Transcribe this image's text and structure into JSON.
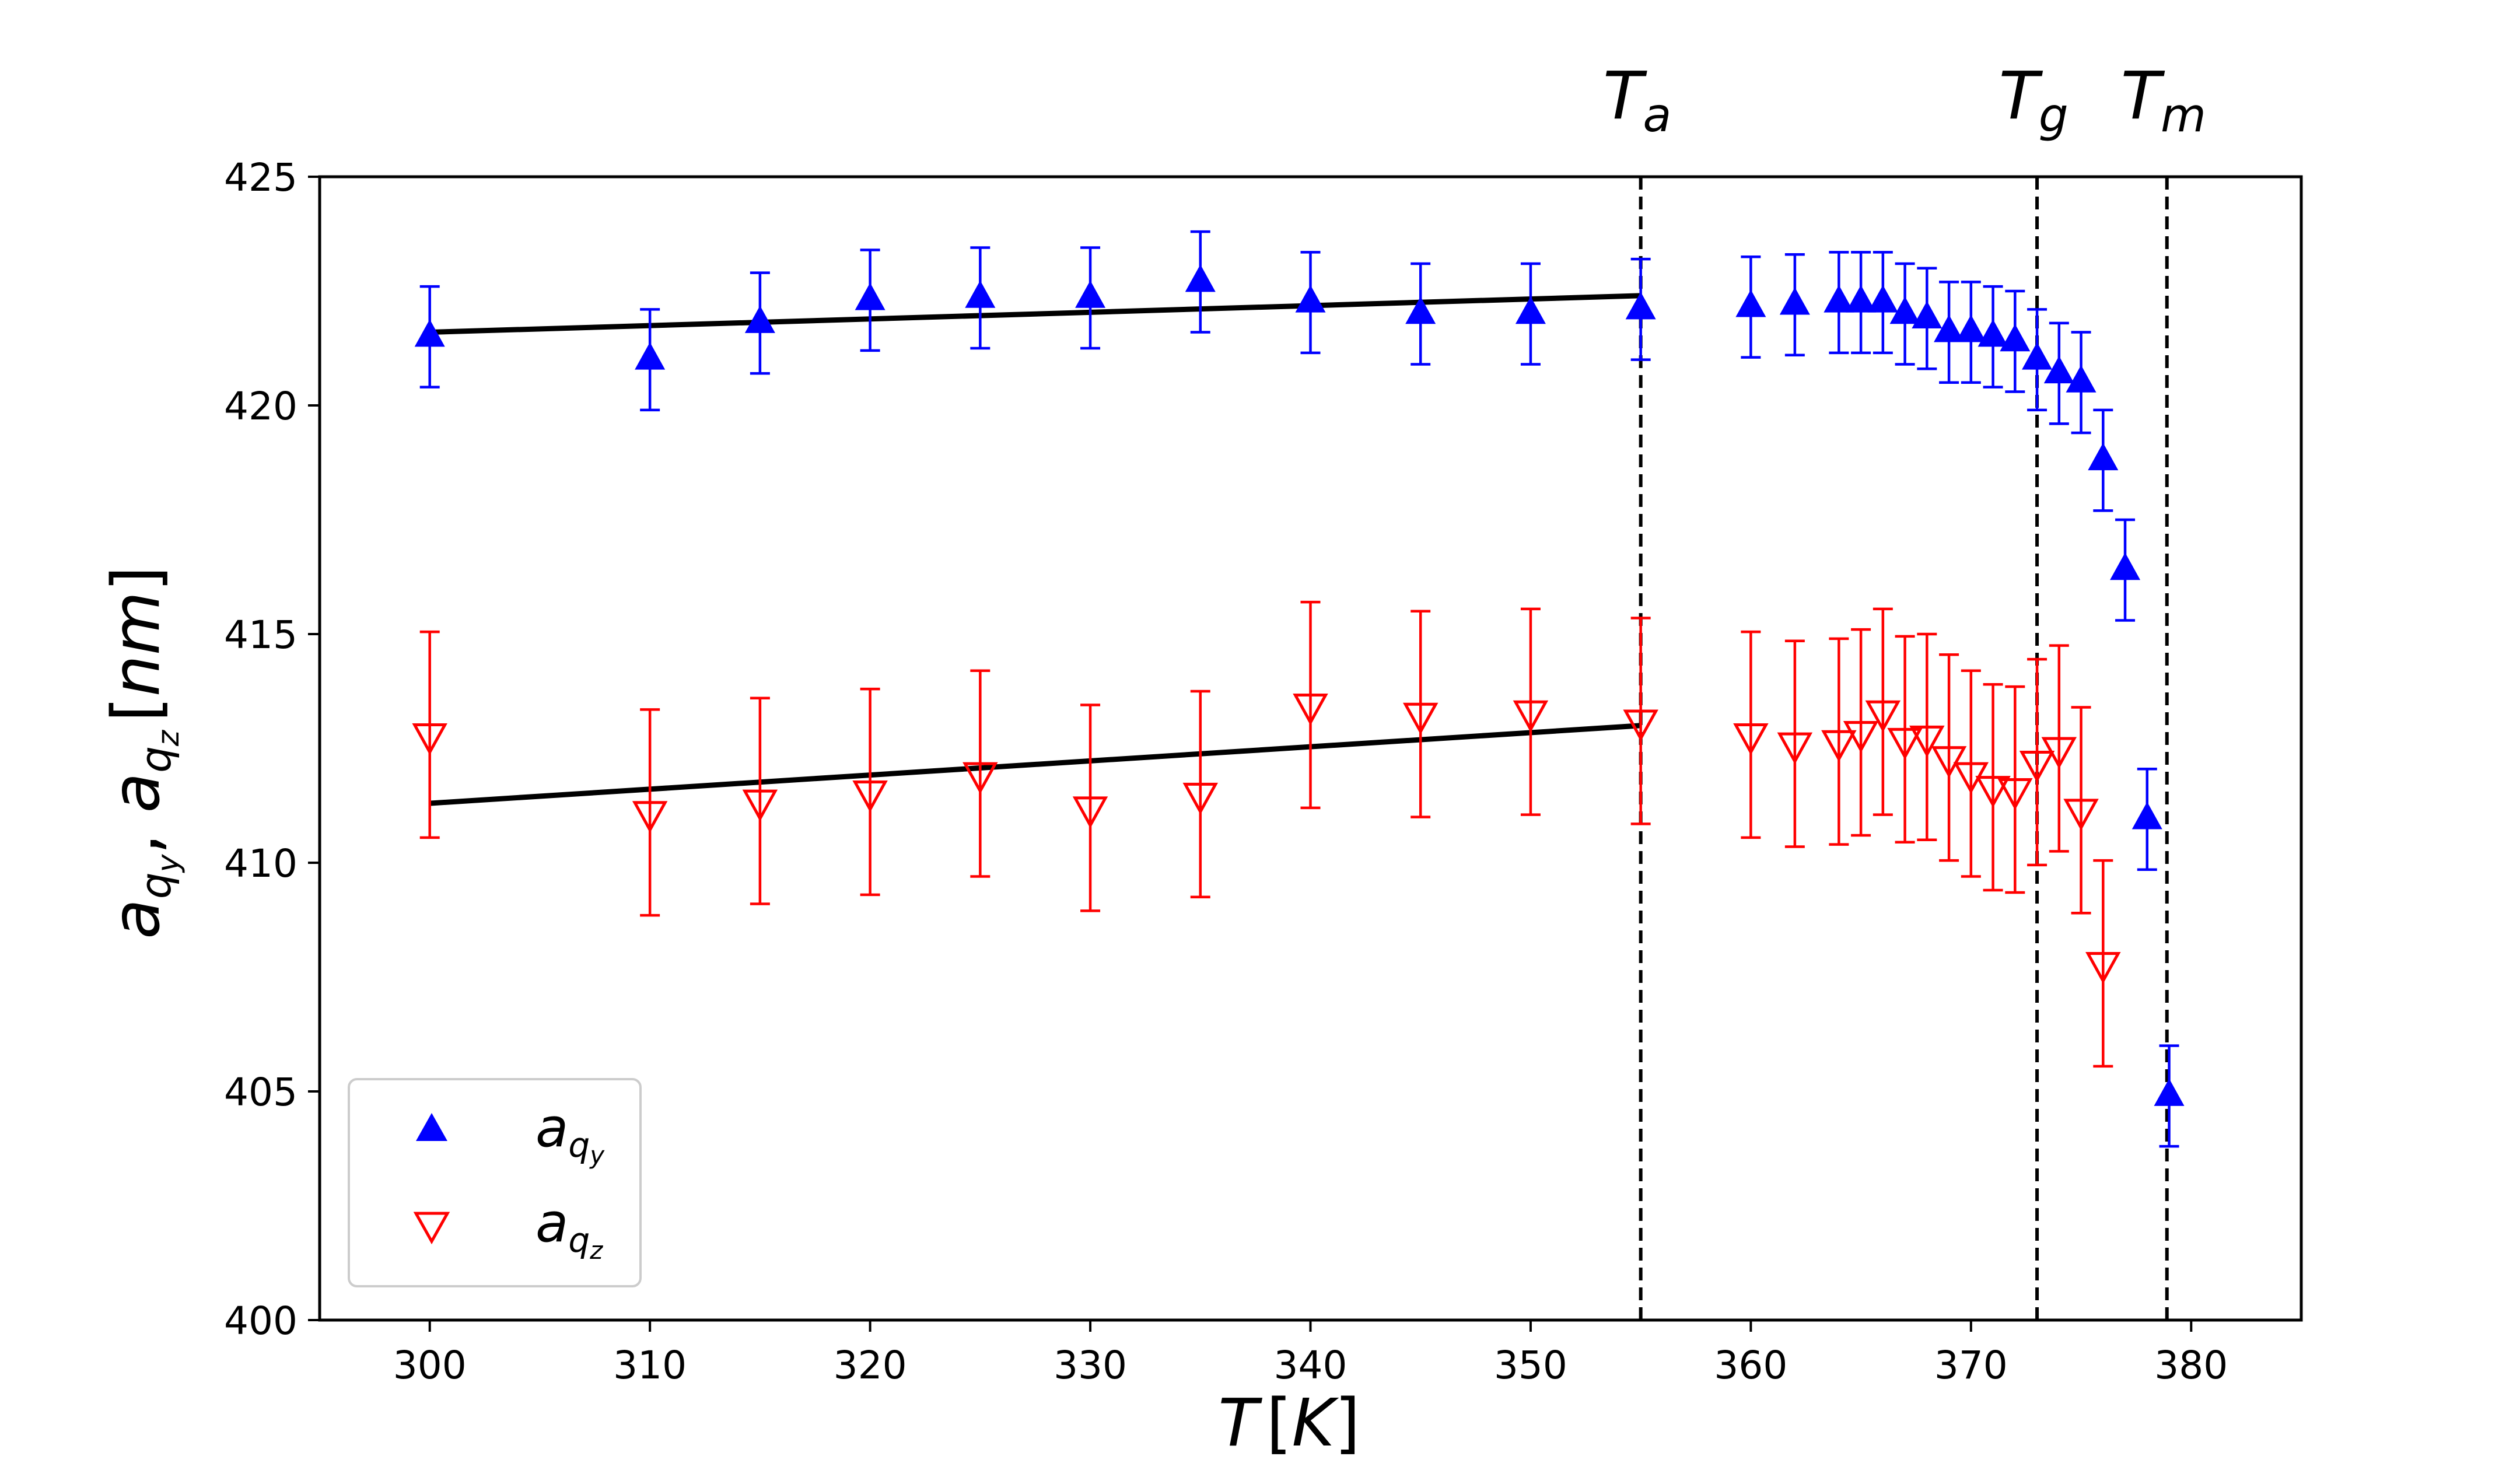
{
  "chart_data": {
    "type": "scatter",
    "xlabel": "T",
    "xlabel_unit": "K",
    "ylabel": "a",
    "ylabel_unit": "nm",
    "xlim": [
      295,
      385
    ],
    "ylim": [
      400,
      425
    ],
    "xticks": [
      300,
      310,
      320,
      330,
      340,
      350,
      360,
      370,
      380
    ],
    "yticks": [
      400,
      405,
      410,
      415,
      420,
      425
    ],
    "grid": false,
    "legend_position": "bottom-left",
    "vertical_lines": [
      {
        "x": 355,
        "label": "T",
        "sub": "a"
      },
      {
        "x": 373,
        "label": "T",
        "sub": "g"
      },
      {
        "x": 378.9,
        "label": "T",
        "sub": "m"
      }
    ],
    "series": [
      {
        "name": "a",
        "sub": "q",
        "subsub": "y",
        "marker": "triangle-up-filled",
        "color": "#0000ff",
        "x": [
          300,
          310,
          315,
          320,
          325,
          330,
          335,
          340,
          345,
          350,
          355,
          360,
          362,
          364,
          365,
          366,
          367,
          368,
          369,
          370,
          371,
          372,
          373,
          374,
          375,
          376,
          377,
          378,
          379
        ],
        "y": [
          421.5,
          421.0,
          421.8,
          422.3,
          422.35,
          422.35,
          422.7,
          422.25,
          422.0,
          422.0,
          422.1,
          422.15,
          422.2,
          422.25,
          422.25,
          422.25,
          422.0,
          421.9,
          421.6,
          421.6,
          421.5,
          421.4,
          421.0,
          420.7,
          420.5,
          418.8,
          416.4,
          410.95,
          404.9
        ],
        "err": [
          1.1,
          1.1,
          1.1,
          1.1,
          1.1,
          1.1,
          1.1,
          1.1,
          1.1,
          1.1,
          1.1,
          1.1,
          1.1,
          1.1,
          1.1,
          1.1,
          1.1,
          1.1,
          1.1,
          1.1,
          1.1,
          1.1,
          1.1,
          1.1,
          1.1,
          1.1,
          1.1,
          1.1,
          1.1
        ],
        "fit": {
          "x": [
            300,
            355
          ],
          "y": [
            421.6,
            422.4
          ]
        }
      },
      {
        "name": "a",
        "sub": "q",
        "subsub": "z",
        "marker": "triangle-down-open",
        "color": "#ff0000",
        "x": [
          300,
          310,
          315,
          320,
          325,
          330,
          335,
          340,
          345,
          350,
          355,
          360,
          362,
          364,
          365,
          366,
          367,
          368,
          369,
          370,
          371,
          372,
          373,
          374,
          375,
          376
        ],
        "y": [
          412.8,
          411.1,
          411.35,
          411.55,
          411.95,
          411.2,
          411.5,
          413.45,
          413.25,
          413.3,
          413.1,
          412.8,
          412.6,
          412.65,
          412.85,
          413.3,
          412.7,
          412.75,
          412.3,
          411.95,
          411.65,
          411.6,
          412.2,
          412.5,
          411.15,
          407.8
        ],
        "err": [
          2.25,
          2.25,
          2.25,
          2.25,
          2.25,
          2.25,
          2.25,
          2.25,
          2.25,
          2.25,
          2.25,
          2.25,
          2.25,
          2.25,
          2.25,
          2.25,
          2.25,
          2.25,
          2.25,
          2.25,
          2.25,
          2.25,
          2.25,
          2.25,
          2.25,
          2.25
        ],
        "fit": {
          "x": [
            300,
            355
          ],
          "y": [
            411.3,
            413.0
          ]
        }
      }
    ]
  }
}
